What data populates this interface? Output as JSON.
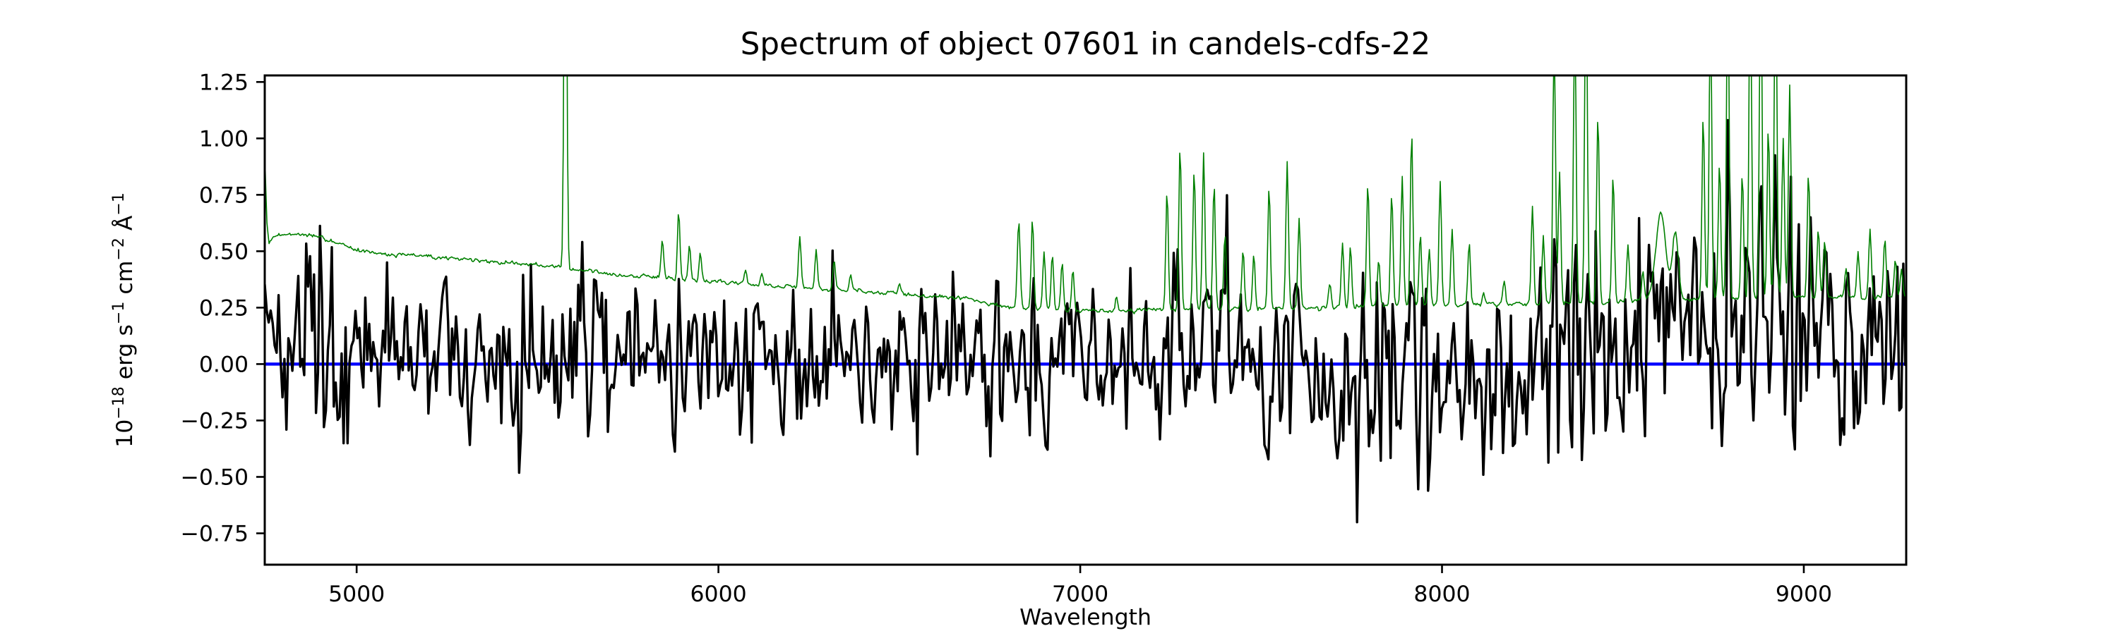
{
  "page": {
    "background": "#ffffff"
  },
  "chart_data": {
    "type": "line",
    "title": "Spectrum of object 07601 in candels-cdfs-22",
    "xlabel": "Wavelength",
    "ylabel_plain": "10−18 erg s−1 cm−2 Å−1",
    "ylabel_parts": [
      [
        "10",
        false
      ],
      [
        "−18",
        true
      ],
      [
        " erg s",
        false
      ],
      [
        "−1",
        true
      ],
      [
        " cm",
        false
      ],
      [
        "−2",
        true
      ],
      [
        " Å",
        false
      ],
      [
        "−1",
        true
      ]
    ],
    "xlim": [
      4746,
      9283
    ],
    "ylim": [
      -0.889,
      1.279
    ],
    "xticks": [
      5000,
      6000,
      7000,
      8000,
      9000
    ],
    "yticks": [
      1.25,
      1.0,
      0.75,
      0.5,
      0.25,
      0.0,
      -0.25,
      -0.5,
      -0.75
    ],
    "grid": false,
    "legend": null,
    "frame_color": "#000000",
    "series": [
      {
        "name": "zero-line",
        "kind": "hline",
        "y": 0,
        "color": "#0000ff",
        "linewidth": 4.4
      },
      {
        "name": "flux-spectrum",
        "kind": "noisy-spectrum",
        "color": "#000000",
        "linewidth": 3.4,
        "seed": 20240601,
        "step_angstrom": 5.45,
        "ar_coeff": 0.26,
        "mean_anchors": [
          [
            4746,
            0.16
          ],
          [
            4800,
            0.12
          ],
          [
            4900,
            0.1
          ],
          [
            5000,
            0.06
          ],
          [
            5200,
            0.05
          ],
          [
            5500,
            0.04
          ],
          [
            6000,
            0.03
          ],
          [
            6500,
            0.02
          ],
          [
            7000,
            0.02
          ],
          [
            7500,
            0.03
          ],
          [
            8000,
            0.03
          ],
          [
            8300,
            0.06
          ],
          [
            8600,
            0.12
          ],
          [
            8850,
            0.14
          ],
          [
            9000,
            0.1
          ],
          [
            9283,
            0.12
          ]
        ],
        "sigma_anchors": [
          [
            4746,
            0.14
          ],
          [
            4800,
            0.17
          ],
          [
            4900,
            0.18
          ],
          [
            5000,
            0.15
          ],
          [
            5300,
            0.16
          ],
          [
            5600,
            0.165
          ],
          [
            5900,
            0.16
          ],
          [
            6200,
            0.155
          ],
          [
            6500,
            0.16
          ],
          [
            6800,
            0.165
          ],
          [
            7100,
            0.17
          ],
          [
            7300,
            0.19
          ],
          [
            7600,
            0.21
          ],
          [
            7900,
            0.225
          ],
          [
            8200,
            0.235
          ],
          [
            8500,
            0.25
          ],
          [
            8800,
            0.27
          ],
          [
            9000,
            0.265
          ],
          [
            9283,
            0.275
          ]
        ],
        "spike_halfwidth_angstrom": 6.5,
        "spikes": [
          [
            4805,
            -0.32
          ],
          [
            4862,
            0.62
          ],
          [
            4880,
            0.55
          ],
          [
            4900,
            0.84
          ],
          [
            4912,
            -0.49
          ],
          [
            4930,
            0.57
          ],
          [
            4975,
            -0.36
          ],
          [
            5084,
            0.46
          ],
          [
            5200,
            -0.36
          ],
          [
            5250,
            0.52
          ],
          [
            5310,
            -0.45
          ],
          [
            5460,
            0.4
          ],
          [
            5560,
            -0.38
          ],
          [
            5624,
            0.59
          ],
          [
            5640,
            -0.33
          ],
          [
            5660,
            0.45
          ],
          [
            5772,
            0.44
          ],
          [
            5890,
            0.42
          ],
          [
            5905,
            -0.36
          ],
          [
            6060,
            -0.32
          ],
          [
            6100,
            0.42
          ],
          [
            6230,
            -0.34
          ],
          [
            6316,
            0.55
          ],
          [
            6410,
            0.46
          ],
          [
            6480,
            -0.36
          ],
          [
            6560,
            0.38
          ],
          [
            6640,
            -0.3
          ],
          [
            6650,
            0.42
          ],
          [
            6780,
            -0.32
          ],
          [
            6870,
            0.46
          ],
          [
            7037,
            0.42
          ],
          [
            7060,
            -0.33
          ],
          [
            7180,
            0.42
          ],
          [
            7270,
            0.56
          ],
          [
            7300,
            -0.5
          ],
          [
            7405,
            0.8
          ],
          [
            7510,
            -0.36
          ],
          [
            7572,
            0.42
          ],
          [
            7680,
            -0.35
          ],
          [
            7766,
            -0.79
          ],
          [
            7780,
            0.52
          ],
          [
            7830,
            -0.48
          ],
          [
            7887,
            -0.47
          ],
          [
            7920,
            0.47
          ],
          [
            7935,
            -0.59
          ],
          [
            7964,
            -0.73
          ],
          [
            8090,
            -0.4
          ],
          [
            8200,
            -0.38
          ],
          [
            8310,
            0.56
          ],
          [
            8367,
            0.57
          ],
          [
            8387,
            -0.45
          ],
          [
            8500,
            -0.39
          ],
          [
            8560,
            -0.35
          ],
          [
            8570,
            0.67
          ],
          [
            8650,
            0.55
          ],
          [
            8700,
            0.6
          ],
          [
            8745,
            -0.43
          ],
          [
            8790,
            1.1
          ],
          [
            8842,
            0.72
          ],
          [
            8860,
            -0.3
          ],
          [
            8880,
            1.18
          ],
          [
            8920,
            1.05
          ],
          [
            8975,
            -0.39
          ],
          [
            8985,
            0.75
          ],
          [
            9060,
            0.55
          ],
          [
            9100,
            -0.42
          ],
          [
            9120,
            0.48
          ],
          [
            9175,
            -0.35
          ],
          [
            9180,
            0.52
          ],
          [
            9240,
            0.5
          ],
          [
            9245,
            -0.3
          ],
          [
            9275,
            0.45
          ]
        ]
      },
      {
        "name": "noise-sky-spectrum",
        "kind": "sky-spectrum",
        "color": "#008000",
        "linewidth": 1.6,
        "seed": 99,
        "step_angstrom": 3.0,
        "jitter_sigma": 0.005,
        "continuum_anchors": [
          [
            4746,
            0.93
          ],
          [
            4752,
            0.62
          ],
          [
            4757,
            0.527
          ],
          [
            4770,
            0.562
          ],
          [
            4790,
            0.575
          ],
          [
            4830,
            0.578
          ],
          [
            4870,
            0.57
          ],
          [
            4910,
            0.555
          ],
          [
            4950,
            0.532
          ],
          [
            5000,
            0.505
          ],
          [
            5080,
            0.49
          ],
          [
            5180,
            0.478
          ],
          [
            5280,
            0.465
          ],
          [
            5380,
            0.452
          ],
          [
            5480,
            0.44
          ],
          [
            5580,
            0.428
          ],
          [
            5680,
            0.4
          ],
          [
            5780,
            0.388
          ],
          [
            5880,
            0.378
          ],
          [
            5980,
            0.366
          ],
          [
            6080,
            0.354
          ],
          [
            6180,
            0.344
          ],
          [
            6280,
            0.334
          ],
          [
            6380,
            0.324
          ],
          [
            6480,
            0.314
          ],
          [
            6580,
            0.302
          ],
          [
            6680,
            0.29
          ],
          [
            6760,
            0.262
          ],
          [
            6850,
            0.245
          ],
          [
            6950,
            0.238
          ],
          [
            7050,
            0.235
          ],
          [
            7150,
            0.237
          ],
          [
            7250,
            0.24
          ],
          [
            7400,
            0.243
          ],
          [
            7550,
            0.247
          ],
          [
            7700,
            0.251
          ],
          [
            7850,
            0.256
          ],
          [
            8000,
            0.26
          ],
          [
            8150,
            0.264
          ],
          [
            8300,
            0.268
          ],
          [
            8450,
            0.274
          ],
          [
            8600,
            0.285
          ],
          [
            8750,
            0.29
          ],
          [
            8900,
            0.293
          ],
          [
            9050,
            0.296
          ],
          [
            9200,
            0.298
          ],
          [
            9283,
            0.3
          ]
        ],
        "emission_lines": [
          [
            5577,
            2.3,
            3.5
          ],
          [
            5845,
            0.17,
            3.5
          ],
          [
            5890,
            0.3,
            3.5
          ],
          [
            5920,
            0.16,
            3.5
          ],
          [
            5950,
            0.12,
            3.5
          ],
          [
            6075,
            0.06,
            3.5
          ],
          [
            6120,
            0.05,
            3.5
          ],
          [
            6225,
            0.23,
            3.5
          ],
          [
            6270,
            0.17,
            3.5
          ],
          [
            6320,
            0.12,
            3.5
          ],
          [
            6365,
            0.07,
            3.5
          ],
          [
            6500,
            0.04,
            3.5
          ],
          [
            6830,
            0.38,
            4
          ],
          [
            6868,
            0.4,
            3.5
          ],
          [
            6900,
            0.26,
            3.5
          ],
          [
            6923,
            0.24,
            3.5
          ],
          [
            6950,
            0.21,
            3.5
          ],
          [
            6980,
            0.18,
            3.5
          ],
          [
            7100,
            0.07,
            3.5
          ],
          [
            7240,
            0.54,
            3.5
          ],
          [
            7276,
            0.73,
            3.5
          ],
          [
            7315,
            0.62,
            3.5
          ],
          [
            7341,
            0.69,
            3.5
          ],
          [
            7370,
            0.56,
            3.5
          ],
          [
            7400,
            0.34,
            3.5
          ],
          [
            7450,
            0.26,
            3.5
          ],
          [
            7480,
            0.24,
            3.5
          ],
          [
            7522,
            0.54,
            3.5
          ],
          [
            7572,
            0.65,
            3.5
          ],
          [
            7605,
            0.4,
            3.5
          ],
          [
            7690,
            0.11,
            3.5
          ],
          [
            7725,
            0.29,
            3.5
          ],
          [
            7747,
            0.27,
            3.5
          ],
          [
            7795,
            0.55,
            3.5
          ],
          [
            7825,
            0.2,
            3.5
          ],
          [
            7861,
            0.5,
            3.5
          ],
          [
            7890,
            0.57,
            3.5
          ],
          [
            7916,
            0.77,
            3.5
          ],
          [
            7940,
            0.32,
            3.5
          ],
          [
            7965,
            0.26,
            3.5
          ],
          [
            7995,
            0.54,
            3.5
          ],
          [
            8028,
            0.34,
            3.5
          ],
          [
            8075,
            0.27,
            3.5
          ],
          [
            8115,
            0.06,
            3.5
          ],
          [
            8172,
            0.11,
            3.5
          ],
          [
            8250,
            0.43,
            3.5
          ],
          [
            8280,
            0.3,
            3.5
          ],
          [
            8310,
            1.2,
            3.5
          ],
          [
            8325,
            0.58,
            3.5
          ],
          [
            8367,
            1.3,
            3.5
          ],
          [
            8398,
            1.6,
            3.5
          ],
          [
            8431,
            0.83,
            3.5
          ],
          [
            8473,
            0.56,
            3.5
          ],
          [
            8514,
            0.25,
            3.5
          ],
          [
            8555,
            0.13,
            3.5
          ],
          [
            8605,
            0.38,
            14
          ],
          [
            8645,
            0.3,
            8
          ],
          [
            8722,
            0.81,
            3.5
          ],
          [
            8742,
            1.3,
            3.5
          ],
          [
            8767,
            0.6,
            3.5
          ],
          [
            8790,
            1.45,
            3.5
          ],
          [
            8830,
            0.55,
            3.5
          ],
          [
            8852,
            1.5,
            3.5
          ],
          [
            8881,
            1.55,
            3.5
          ],
          [
            8902,
            0.75,
            3.5
          ],
          [
            8922,
            1.6,
            3.5
          ],
          [
            8943,
            0.7,
            3.5
          ],
          [
            8961,
            0.95,
            3.5
          ],
          [
            9013,
            0.55,
            3.5
          ],
          [
            9040,
            0.3,
            3.5
          ],
          [
            9058,
            0.25,
            3.5
          ],
          [
            9117,
            0.12,
            3.5
          ],
          [
            9150,
            0.2,
            3.5
          ],
          [
            9183,
            0.3,
            3.5
          ],
          [
            9224,
            0.25,
            3.5
          ],
          [
            9253,
            0.16,
            3.5
          ],
          [
            9270,
            0.12,
            3.5
          ]
        ]
      }
    ]
  }
}
